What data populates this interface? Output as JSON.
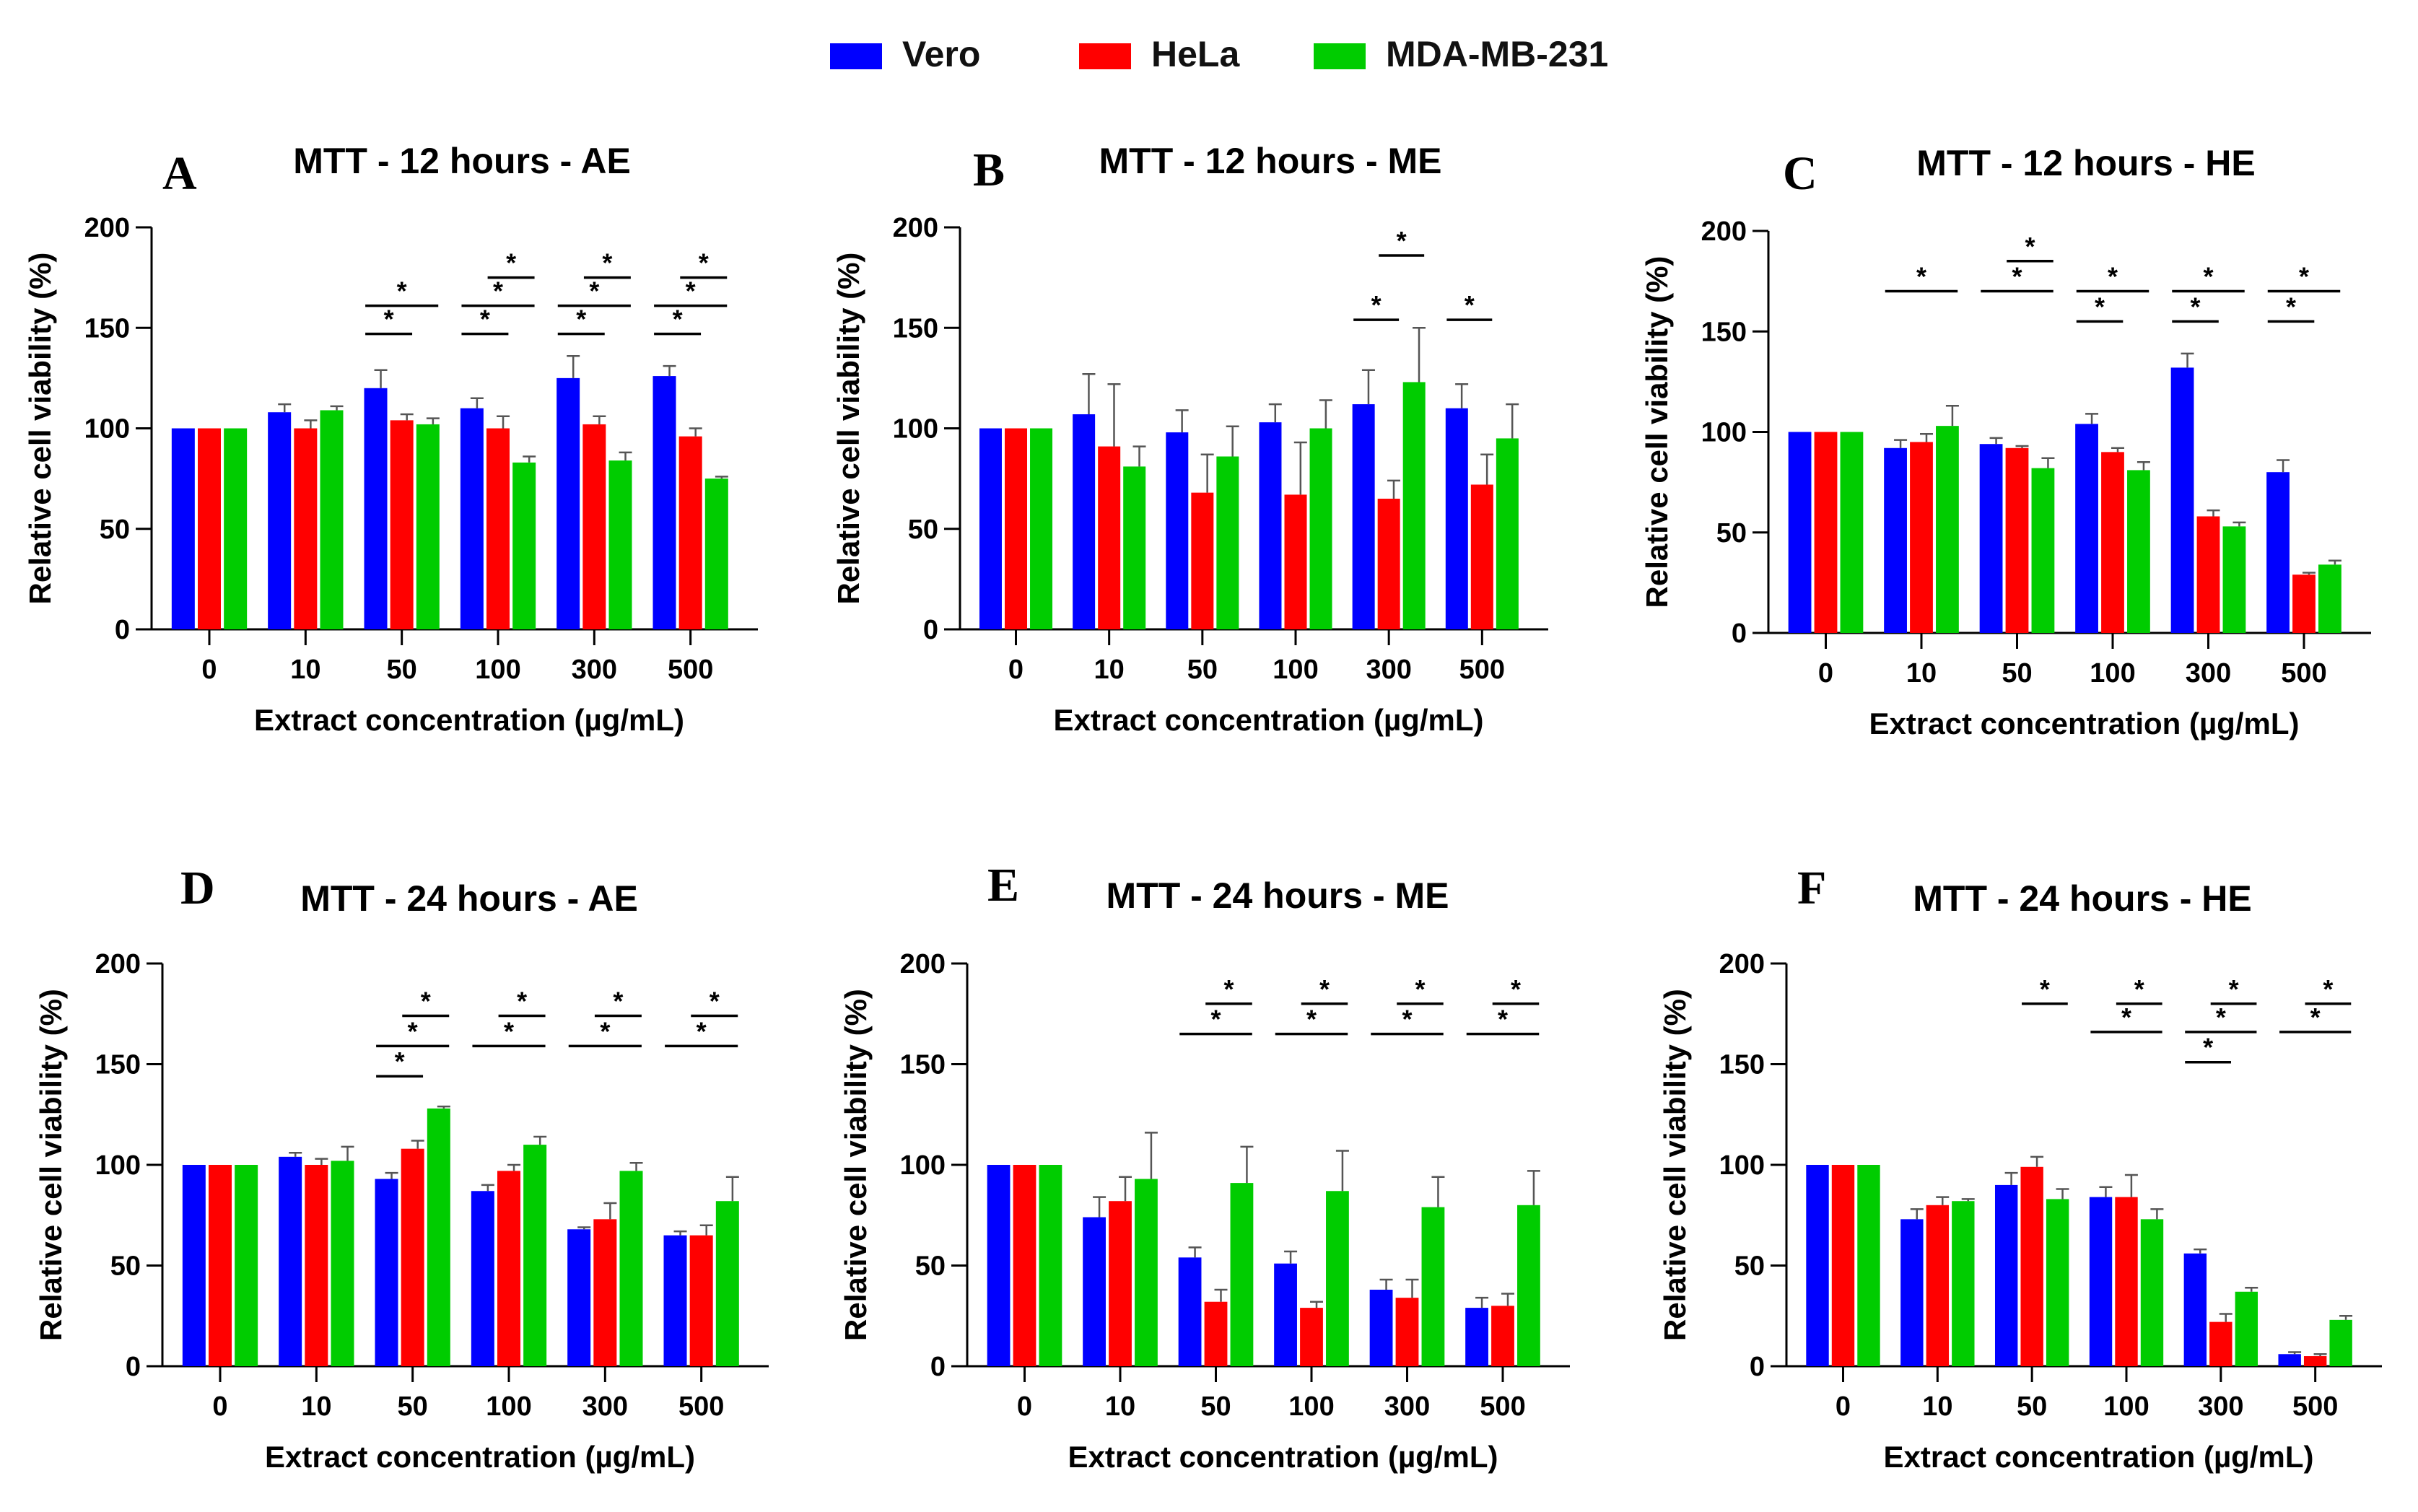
{
  "legend": [
    {
      "name": "Vero",
      "color": "#0000ff"
    },
    {
      "name": "HeLa",
      "color": "#ff0000"
    },
    {
      "name": "MDA-MB-231",
      "color": "#00cc00"
    }
  ],
  "chart_data": [
    {
      "type": "bar",
      "letter": "A",
      "title": "MTT - 12 hours - AE",
      "xlabel": "Extract concentration (µg/mL)",
      "ylabel": "Relative cell viability (%)",
      "ylim": [
        0,
        200
      ],
      "yticks": [
        "0",
        "50",
        "100",
        "150",
        "200"
      ],
      "categories": [
        "0",
        "10",
        "50",
        "100",
        "300",
        "500"
      ],
      "series": [
        {
          "name": "Vero",
          "values": [
            100,
            108,
            120,
            110,
            125,
            126
          ],
          "errors": [
            0,
            4,
            9,
            5,
            11,
            5
          ]
        },
        {
          "name": "HeLa",
          "values": [
            100,
            100,
            104,
            100,
            102,
            96
          ],
          "errors": [
            0,
            4,
            3,
            6,
            4,
            4
          ]
        },
        {
          "name": "MDA-MB-231",
          "values": [
            100,
            109,
            102,
            83,
            84,
            75
          ],
          "errors": [
            0,
            2,
            3,
            3,
            4,
            1
          ]
        }
      ],
      "significance": [
        {
          "cat": 2,
          "from": 0,
          "to": 1,
          "y": 147,
          "label": "*"
        },
        {
          "cat": 2,
          "from": 0,
          "to": 2,
          "y": 161,
          "label": "*"
        },
        {
          "cat": 3,
          "from": 0,
          "to": 1,
          "y": 147,
          "label": "*"
        },
        {
          "cat": 3,
          "from": 0,
          "to": 2,
          "y": 161,
          "label": "*"
        },
        {
          "cat": 3,
          "from": 1,
          "to": 2,
          "y": 175,
          "label": "*"
        },
        {
          "cat": 4,
          "from": 0,
          "to": 1,
          "y": 147,
          "label": "*"
        },
        {
          "cat": 4,
          "from": 0,
          "to": 2,
          "y": 161,
          "label": "*"
        },
        {
          "cat": 4,
          "from": 1,
          "to": 2,
          "y": 175,
          "label": "*"
        },
        {
          "cat": 5,
          "from": 0,
          "to": 1,
          "y": 147,
          "label": "*"
        },
        {
          "cat": 5,
          "from": 0,
          "to": 2,
          "y": 161,
          "label": "*"
        },
        {
          "cat": 5,
          "from": 1,
          "to": 2,
          "y": 175,
          "label": "*"
        }
      ]
    },
    {
      "type": "bar",
      "letter": "B",
      "title": "MTT - 12 hours - ME",
      "xlabel": "Extract concentration (µg/mL)",
      "ylabel": "Relative cell viability (%)",
      "ylim": [
        0,
        200
      ],
      "yticks": [
        "0",
        "50",
        "100",
        "150",
        "200"
      ],
      "categories": [
        "0",
        "10",
        "50",
        "100",
        "300",
        "500"
      ],
      "series": [
        {
          "name": "Vero",
          "values": [
            100,
            107,
            98,
            103,
            112,
            110
          ],
          "errors": [
            0,
            20,
            11,
            9,
            17,
            12
          ]
        },
        {
          "name": "HeLa",
          "values": [
            100,
            91,
            68,
            67,
            65,
            72
          ],
          "errors": [
            0,
            31,
            19,
            26,
            9,
            15
          ]
        },
        {
          "name": "MDA-MB-231",
          "values": [
            100,
            81,
            86,
            100,
            123,
            95
          ],
          "errors": [
            0,
            10,
            15,
            14,
            27,
            17
          ]
        }
      ],
      "significance": [
        {
          "cat": 4,
          "from": 0,
          "to": 1,
          "y": 154,
          "label": "*"
        },
        {
          "cat": 4,
          "from": 1,
          "to": 2,
          "y": 186,
          "label": "*"
        },
        {
          "cat": 5,
          "from": 0,
          "to": 1,
          "y": 154,
          "label": "*"
        }
      ]
    },
    {
      "type": "bar",
      "letter": "C",
      "title": "MTT - 12 hours - HE",
      "xlabel": "Extract concentration (µg/mL)",
      "ylabel": "Relative cell viability (%)",
      "ylim": [
        0,
        200
      ],
      "yticks": [
        "0",
        "50",
        "100",
        "150",
        "200"
      ],
      "categories": [
        "0",
        "10",
        "50",
        "100",
        "300",
        "500"
      ],
      "series": [
        {
          "name": "Vero",
          "values": [
            100,
            92,
            94,
            104,
            132,
            80
          ],
          "errors": [
            0,
            4,
            3,
            5,
            7,
            6
          ]
        },
        {
          "name": "HeLa",
          "values": [
            100,
            95,
            92,
            90,
            58,
            29
          ],
          "errors": [
            0,
            4,
            1,
            2,
            3,
            1
          ]
        },
        {
          "name": "MDA-MB-231",
          "values": [
            100,
            103,
            82,
            81,
            53,
            34
          ],
          "errors": [
            0,
            10,
            5,
            4,
            2,
            2
          ]
        }
      ],
      "significance": [
        {
          "cat": 1,
          "from": 0,
          "to": 2,
          "y": 170,
          "label": "*"
        },
        {
          "cat": 2,
          "from": 0,
          "to": 2,
          "y": 170,
          "label": "*"
        },
        {
          "cat": 2,
          "from": 1,
          "to": 2,
          "y": 185,
          "label": "*"
        },
        {
          "cat": 3,
          "from": 0,
          "to": 1,
          "y": 155,
          "label": "*"
        },
        {
          "cat": 3,
          "from": 0,
          "to": 2,
          "y": 170,
          "label": "*"
        },
        {
          "cat": 4,
          "from": 0,
          "to": 1,
          "y": 155,
          "label": "*"
        },
        {
          "cat": 4,
          "from": 0,
          "to": 2,
          "y": 170,
          "label": "*"
        },
        {
          "cat": 5,
          "from": 0,
          "to": 1,
          "y": 155,
          "label": "*"
        },
        {
          "cat": 5,
          "from": 0,
          "to": 2,
          "y": 170,
          "label": "*"
        }
      ]
    },
    {
      "type": "bar",
      "letter": "D",
      "title": "MTT - 24 hours - AE",
      "xlabel": "Extract concentration (µg/mL)",
      "ylabel": "Relative cell viability (%)",
      "ylim": [
        0,
        200
      ],
      "yticks": [
        "0",
        "50",
        "100",
        "150",
        "200"
      ],
      "categories": [
        "0",
        "10",
        "50",
        "100",
        "300",
        "500"
      ],
      "series": [
        {
          "name": "Vero",
          "values": [
            100,
            104,
            93,
            87,
            68,
            65
          ],
          "errors": [
            0,
            2,
            3,
            3,
            1,
            2
          ]
        },
        {
          "name": "HeLa",
          "values": [
            100,
            100,
            108,
            97,
            73,
            65
          ],
          "errors": [
            0,
            3,
            4,
            3,
            8,
            5
          ]
        },
        {
          "name": "MDA-MB-231",
          "values": [
            100,
            102,
            128,
            110,
            97,
            82
          ],
          "errors": [
            0,
            7,
            1,
            4,
            4,
            12
          ]
        }
      ],
      "significance": [
        {
          "cat": 2,
          "from": 0,
          "to": 1,
          "y": 144,
          "label": "*"
        },
        {
          "cat": 2,
          "from": 0,
          "to": 2,
          "y": 159,
          "label": "*"
        },
        {
          "cat": 2,
          "from": 1,
          "to": 2,
          "y": 174,
          "label": "*"
        },
        {
          "cat": 3,
          "from": 0,
          "to": 2,
          "y": 159,
          "label": "*"
        },
        {
          "cat": 3,
          "from": 1,
          "to": 2,
          "y": 174,
          "label": "*"
        },
        {
          "cat": 4,
          "from": 0,
          "to": 2,
          "y": 159,
          "label": "*"
        },
        {
          "cat": 4,
          "from": 1,
          "to": 2,
          "y": 174,
          "label": "*"
        },
        {
          "cat": 5,
          "from": 0,
          "to": 2,
          "y": 159,
          "label": "*"
        },
        {
          "cat": 5,
          "from": 1,
          "to": 2,
          "y": 174,
          "label": "*"
        }
      ]
    },
    {
      "type": "bar",
      "letter": "E",
      "title": "MTT - 24 hours - ME",
      "xlabel": "Extract concentration (µg/mL)",
      "ylabel": "Relative cell viability (%)",
      "ylim": [
        0,
        200
      ],
      "yticks": [
        "0",
        "50",
        "100",
        "150",
        "200"
      ],
      "categories": [
        "0",
        "10",
        "50",
        "100",
        "300",
        "500"
      ],
      "series": [
        {
          "name": "Vero",
          "values": [
            100,
            74,
            54,
            51,
            38,
            29
          ],
          "errors": [
            0,
            10,
            5,
            6,
            5,
            5
          ]
        },
        {
          "name": "HeLa",
          "values": [
            100,
            82,
            32,
            29,
            34,
            30
          ],
          "errors": [
            0,
            12,
            6,
            3,
            9,
            6
          ]
        },
        {
          "name": "MDA-MB-231",
          "values": [
            100,
            93,
            91,
            87,
            79,
            80
          ],
          "errors": [
            0,
            23,
            18,
            20,
            15,
            17
          ]
        }
      ],
      "significance": [
        {
          "cat": 2,
          "from": 0,
          "to": 2,
          "y": 165,
          "label": "*"
        },
        {
          "cat": 2,
          "from": 1,
          "to": 2,
          "y": 180,
          "label": "*"
        },
        {
          "cat": 3,
          "from": 0,
          "to": 2,
          "y": 165,
          "label": "*"
        },
        {
          "cat": 3,
          "from": 1,
          "to": 2,
          "y": 180,
          "label": "*"
        },
        {
          "cat": 4,
          "from": 0,
          "to": 2,
          "y": 165,
          "label": "*"
        },
        {
          "cat": 4,
          "from": 1,
          "to": 2,
          "y": 180,
          "label": "*"
        },
        {
          "cat": 5,
          "from": 0,
          "to": 2,
          "y": 165,
          "label": "*"
        },
        {
          "cat": 5,
          "from": 1,
          "to": 2,
          "y": 180,
          "label": "*"
        }
      ]
    },
    {
      "type": "bar",
      "letter": "F",
      "title": "MTT - 24 hours - HE",
      "xlabel": "Extract concentration (µg/mL)",
      "ylabel": "Relative cell viability (%)",
      "ylim": [
        0,
        200
      ],
      "yticks": [
        "0",
        "50",
        "100",
        "150",
        "200"
      ],
      "categories": [
        "0",
        "10",
        "50",
        "100",
        "300",
        "500"
      ],
      "series": [
        {
          "name": "Vero",
          "values": [
            100,
            73,
            90,
            84,
            56,
            6
          ],
          "errors": [
            0,
            5,
            6,
            5,
            2,
            1
          ]
        },
        {
          "name": "HeLa",
          "values": [
            100,
            80,
            99,
            84,
            22,
            5
          ],
          "errors": [
            0,
            4,
            5,
            11,
            4,
            1
          ]
        },
        {
          "name": "MDA-MB-231",
          "values": [
            100,
            82,
            83,
            73,
            37,
            23
          ],
          "errors": [
            0,
            1,
            5,
            5,
            2,
            2
          ]
        }
      ],
      "significance": [
        {
          "cat": 2,
          "from": 1,
          "to": 2,
          "y": 180,
          "label": "*"
        },
        {
          "cat": 3,
          "from": 0,
          "to": 2,
          "y": 166,
          "label": "*"
        },
        {
          "cat": 3,
          "from": 1,
          "to": 2,
          "y": 180,
          "label": "*"
        },
        {
          "cat": 4,
          "from": 0,
          "to": 1,
          "y": 151,
          "label": "*"
        },
        {
          "cat": 4,
          "from": 0,
          "to": 2,
          "y": 166,
          "label": "*"
        },
        {
          "cat": 4,
          "from": 1,
          "to": 2,
          "y": 180,
          "label": "*"
        },
        {
          "cat": 5,
          "from": 0,
          "to": 2,
          "y": 166,
          "label": "*"
        },
        {
          "cat": 5,
          "from": 1,
          "to": 2,
          "y": 180,
          "label": "*"
        }
      ]
    }
  ]
}
